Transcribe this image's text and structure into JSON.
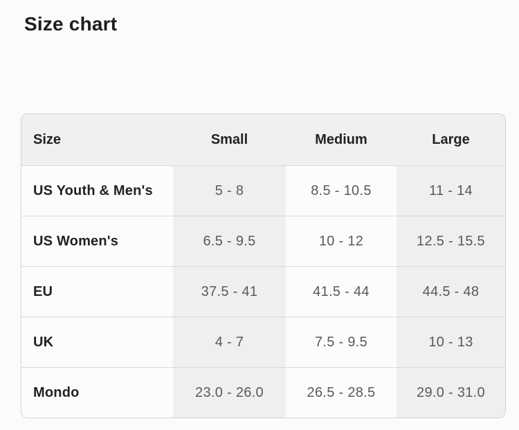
{
  "page": {
    "title": "Size chart"
  },
  "size_table": {
    "columns": [
      "Size",
      "Small",
      "Medium",
      "Large"
    ],
    "rows": [
      {
        "label": "US Youth & Men's",
        "values": [
          "5 - 8",
          "8.5 - 10.5",
          "11 - 14"
        ]
      },
      {
        "label": "US Women's",
        "values": [
          "6.5 - 9.5",
          "10 - 12",
          "12.5 - 15.5"
        ]
      },
      {
        "label": "EU",
        "values": [
          "37.5 - 41",
          "41.5 - 44",
          "44.5 - 48"
        ]
      },
      {
        "label": "UK",
        "values": [
          "4 - 7",
          "7.5 - 9.5",
          "10 - 13"
        ]
      },
      {
        "label": "Mondo",
        "values": [
          "23.0 - 26.0",
          "26.5 - 28.5",
          "29.0 - 31.0"
        ]
      }
    ],
    "colors": {
      "header_bg": "#f0f0ef",
      "stripe_bg": "#efefee",
      "cell_bg": "#fcfcfc",
      "border": "#d2d2d2",
      "separator": "#d9d9d9",
      "label_text": "#222222",
      "value_text": "#59595b",
      "title_text": "#1d1d1f"
    }
  }
}
